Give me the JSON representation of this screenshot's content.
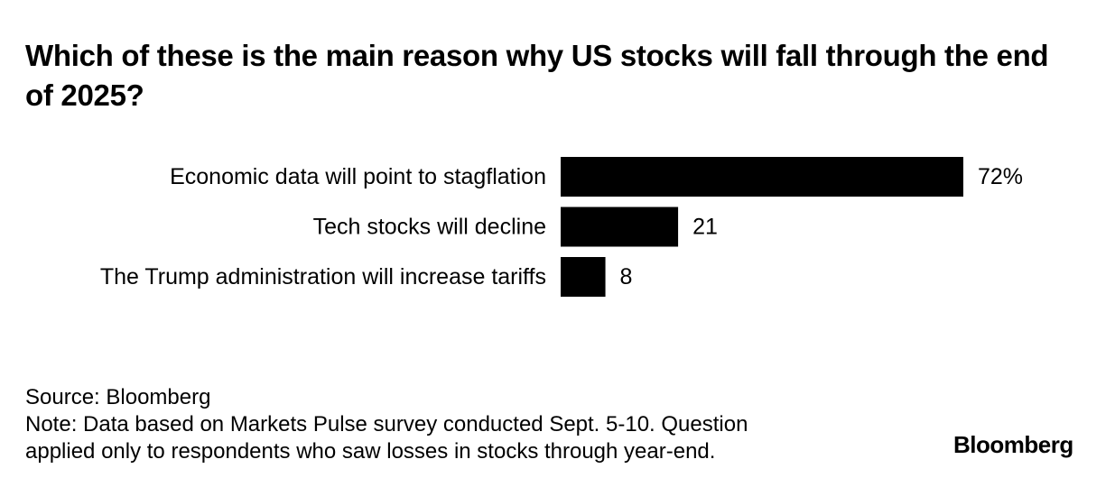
{
  "title": "Which of these is the main reason why US stocks will fall through the end of 2025?",
  "chart_data": {
    "type": "bar",
    "orientation": "horizontal",
    "title": "Which of these is the main reason why US stocks will fall through the end of 2025?",
    "categories": [
      "Economic data will point to stagflation",
      "Tech stocks will decline",
      "The Trump administration will increase tariffs"
    ],
    "values": [
      72,
      21,
      8
    ],
    "value_labels": [
      "72%",
      "21",
      "8"
    ],
    "unit": "%",
    "xlim": [
      0,
      72
    ],
    "bar_color": "#000000",
    "grid": false,
    "xlabel": "",
    "ylabel": ""
  },
  "footer": {
    "source": "Source: Bloomberg",
    "note_line1": "Note: Data based on Markets Pulse survey conducted Sept. 5-10. Question",
    "note_line2": "applied only to respondents who saw losses in stocks through year-end."
  },
  "logo": "Bloomberg"
}
